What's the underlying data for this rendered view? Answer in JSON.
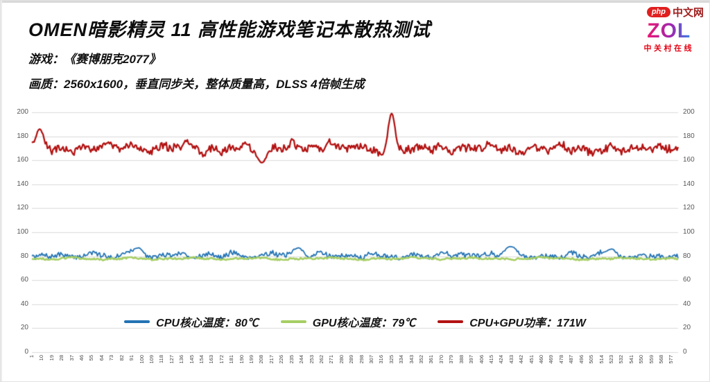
{
  "header": {
    "title": "OMEN暗影精灵 11 高性能游戏笔记本散热测试",
    "subtitle_game": "游戏：《赛博朋克2077》",
    "subtitle_quality": "画质：2560x1600，垂直同步关，整体质量高，DLSS 4倍帧生成"
  },
  "branding": {
    "watermark_php": "php",
    "watermark_cn": "中文网",
    "zol_text": "ZOL",
    "zol_subtext": "中关村在线"
  },
  "chart_data": {
    "type": "line",
    "title": "OMEN暗影精灵 11 高性能游戏笔记本散热测试",
    "xlabel": "",
    "ylabel": "",
    "ylim": [
      0,
      200
    ],
    "grid": true,
    "legend_position": "bottom-center",
    "x_points": 583,
    "y_ticks": [
      0,
      20,
      40,
      60,
      80,
      100,
      120,
      140,
      160,
      180,
      200
    ],
    "x_ticks": [
      1,
      10,
      19,
      28,
      37,
      46,
      55,
      64,
      73,
      82,
      91,
      100,
      109,
      118,
      127,
      136,
      145,
      154,
      163,
      172,
      181,
      190,
      199,
      208,
      217,
      226,
      235,
      244,
      253,
      262,
      271,
      280,
      289,
      298,
      307,
      316,
      325,
      334,
      343,
      352,
      361,
      370,
      379,
      388,
      397,
      406,
      415,
      424,
      433,
      442,
      451,
      460,
      469,
      478,
      487,
      496,
      505,
      514,
      523,
      532,
      541,
      550,
      559,
      568,
      577
    ],
    "series": [
      {
        "name": "CPU核心温度：80℃",
        "stat_value": "80℃",
        "color": "#2373b4",
        "line_width": 1.8,
        "baseline": 80,
        "jitter": 2.0,
        "walk": 1.0,
        "seed": 7,
        "anchors": [
          79,
          81,
          80,
          82,
          79,
          80,
          83,
          80,
          79,
          82,
          84,
          80,
          79,
          81,
          80,
          83,
          79,
          80,
          82,
          79,
          84,
          80,
          79,
          81,
          84,
          80,
          82,
          79,
          80,
          84,
          79,
          81,
          80,
          79,
          83,
          80,
          81,
          79,
          82,
          80,
          79,
          84,
          80,
          82,
          79,
          80,
          83,
          79,
          84,
          80,
          79,
          82,
          80,
          79,
          83,
          80,
          79,
          84,
          81,
          79,
          80,
          82,
          79,
          81,
          80
        ],
        "events": [
          {
            "x": 97,
            "value": 87,
            "width": 4
          },
          {
            "x": 241,
            "value": 87,
            "width": 4
          },
          {
            "x": 432,
            "value": 88,
            "width": 5
          },
          {
            "x": 523,
            "value": 86,
            "width": 4
          }
        ]
      },
      {
        "name": "GPU核心温度：79℃",
        "stat_value": "79℃",
        "color": "#a6ce63",
        "line_width": 2.6,
        "baseline": 79,
        "jitter": 0.7,
        "walk": 0.3,
        "seed": 13,
        "anchors": [
          78,
          78,
          77,
          78,
          79,
          78,
          78,
          77,
          78,
          78,
          79,
          78,
          77,
          78,
          78,
          78,
          79,
          78,
          78,
          77,
          78,
          78,
          78,
          79,
          78,
          77,
          78,
          78,
          78,
          78,
          79,
          78,
          78,
          77,
          78,
          78,
          78,
          78,
          79,
          78,
          78,
          77,
          78,
          78,
          79,
          78,
          78,
          78,
          77,
          78,
          78,
          79,
          78,
          78,
          78,
          77,
          78,
          78,
          78,
          79,
          78,
          78,
          77,
          78,
          78
        ],
        "events": []
      },
      {
        "name": "CPU+GPU功率：171W",
        "stat_value": "171W",
        "color": "#b31212",
        "line_width": 2.3,
        "baseline": 171,
        "jitter": 3.0,
        "walk": 2.2,
        "seed": 29,
        "anchors": [
          172,
          174,
          168,
          170,
          166,
          172,
          169,
          174,
          171,
          168,
          173,
          170,
          167,
          172,
          169,
          171,
          175,
          168,
          172,
          166,
          170,
          173,
          169,
          168,
          171,
          168,
          174,
          170,
          172,
          167,
          176,
          171,
          169,
          173,
          170,
          166,
          170,
          170,
          168,
          172,
          169,
          174,
          167,
          171,
          170,
          168,
          173,
          169,
          171,
          166,
          172,
          170,
          168,
          174,
          169,
          172,
          167,
          171,
          173,
          168,
          170,
          172,
          169,
          171,
          168
        ],
        "events": [
          {
            "x": 8,
            "value": 186,
            "width": 3
          },
          {
            "x": 208,
            "value": 158,
            "width": 4
          },
          {
            "x": 325,
            "value": 199,
            "width": 3
          }
        ]
      }
    ]
  }
}
